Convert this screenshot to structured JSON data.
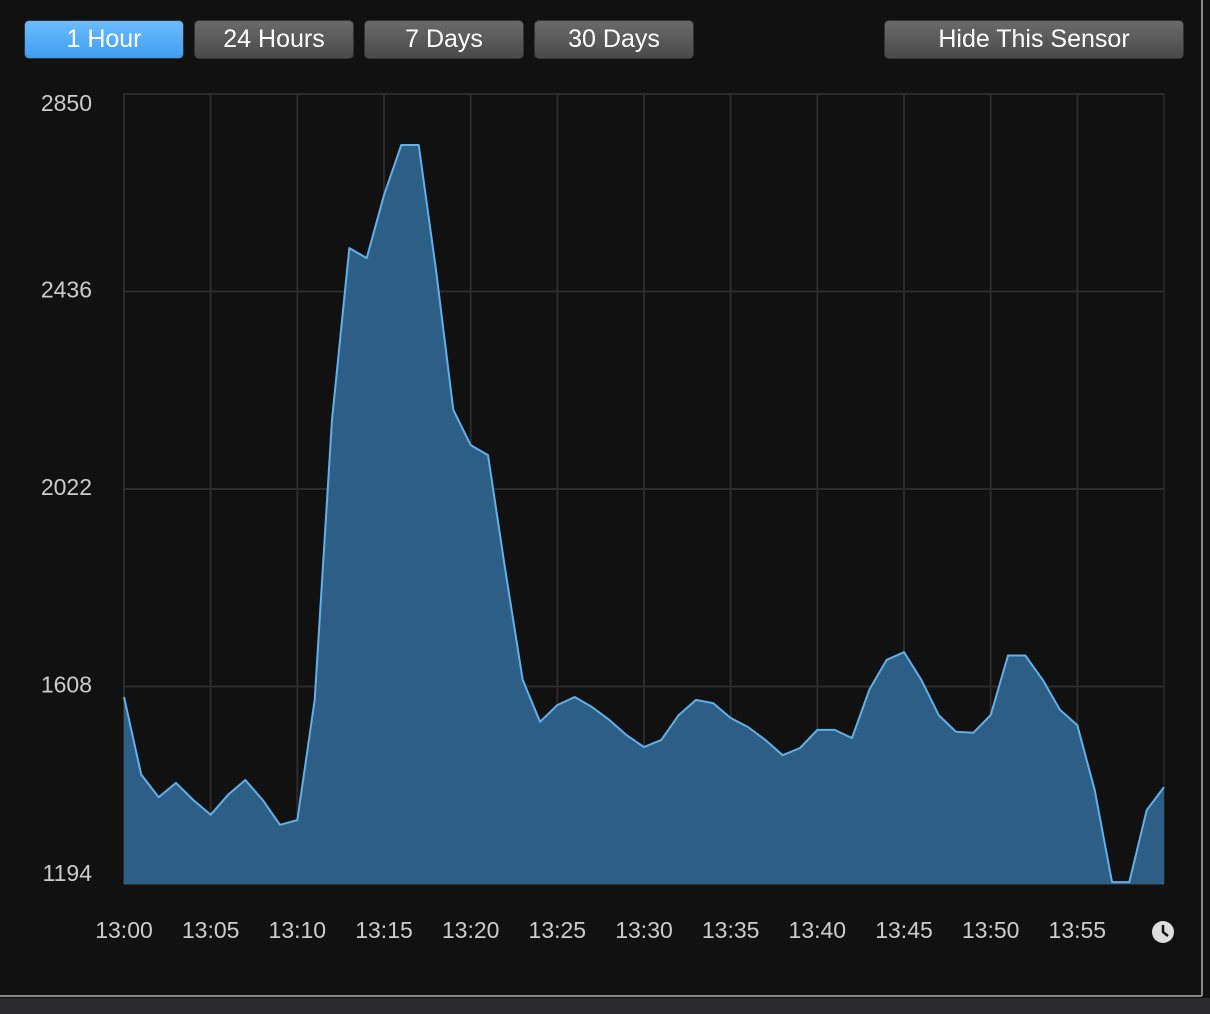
{
  "buttons": [
    "1 Hour",
    "24 Hours",
    "7 Days",
    "30 Days"
  ],
  "hide_button": "Hide This Sensor",
  "chart_data": {
    "type": "area",
    "color": "#2d5f86",
    "line_color": "#62b0e8",
    "x": [
      "13:00",
      "13:01",
      "13:02",
      "13:03",
      "13:04",
      "13:05",
      "13:06",
      "13:07",
      "13:08",
      "13:09",
      "13:10",
      "13:11",
      "13:12",
      "13:13",
      "13:14",
      "13:15",
      "13:16",
      "13:17",
      "13:18",
      "13:19",
      "13:20",
      "13:21",
      "13:22",
      "13:23",
      "13:24",
      "13:25",
      "13:26",
      "13:27",
      "13:28",
      "13:29",
      "13:30",
      "13:31",
      "13:32",
      "13:33",
      "13:34",
      "13:35",
      "13:36",
      "13:37",
      "13:38",
      "13:39",
      "13:40",
      "13:41",
      "13:42",
      "13:43",
      "13:44",
      "13:45",
      "13:46",
      "13:47",
      "13:48",
      "13:49",
      "13:50",
      "13:51",
      "13:52",
      "13:53",
      "13:54",
      "13:55",
      "13:56",
      "13:57",
      "13:58",
      "13:59",
      "14:00"
    ],
    "values": [
      1586,
      1423,
      1376,
      1406,
      1370,
      1339,
      1381,
      1412,
      1370,
      1318,
      1328,
      1580,
      2167,
      2527,
      2506,
      2638,
      2743,
      2743,
      2481,
      2188,
      2114,
      2093,
      1852,
      1622,
      1534,
      1569,
      1586,
      1565,
      1538,
      1506,
      1481,
      1496,
      1548,
      1580,
      1573,
      1542,
      1523,
      1496,
      1464,
      1479,
      1517,
      1517,
      1500,
      1601,
      1664,
      1680,
      1622,
      1548,
      1513,
      1511,
      1548,
      1673,
      1673,
      1622,
      1559,
      1527,
      1391,
      1198,
      1198,
      1349,
      1397
    ],
    "xlim": [
      "13:00",
      "14:00"
    ],
    "xticks": [
      "13:00",
      "13:05",
      "13:10",
      "13:15",
      "13:20",
      "13:25",
      "13:30",
      "13:35",
      "13:40",
      "13:45",
      "13:50",
      "13:55"
    ],
    "ylim": [
      1194,
      2850
    ],
    "yticks": [
      1194,
      1608,
      2022,
      2436,
      2850
    ],
    "grid": true
  }
}
